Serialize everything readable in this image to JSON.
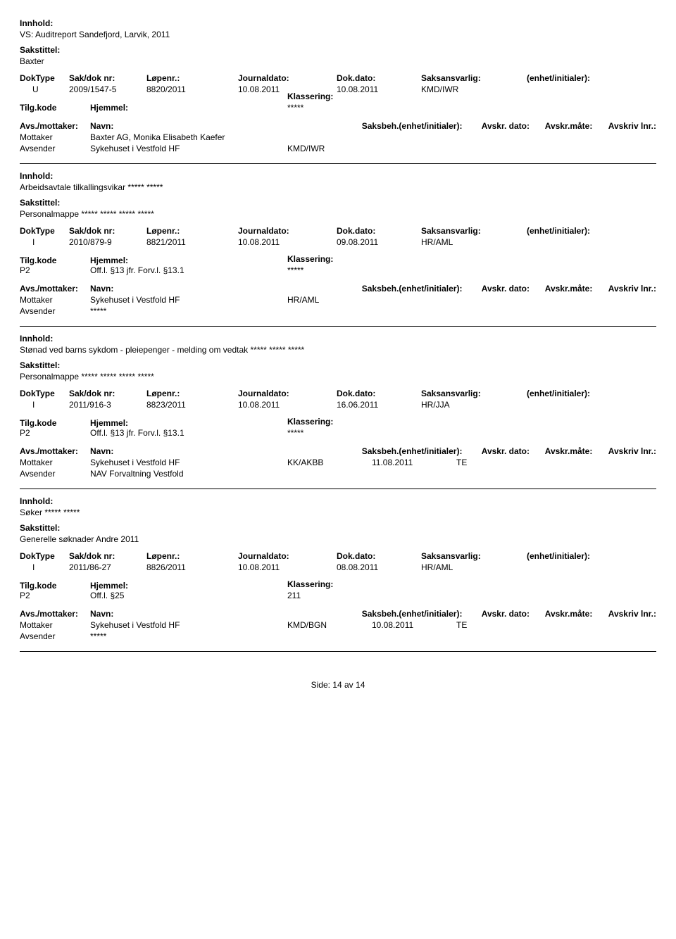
{
  "labels": {
    "innhold": "Innhold:",
    "sakstittel": "Sakstittel:",
    "doktype": "DokType",
    "sakdok": "Sak/dok nr:",
    "lnr": "Løpenr.:",
    "jdate": "Journaldato:",
    "ddate": "Dok.dato:",
    "saksansv": "Saksansvarlig:",
    "enhet": "(enhet/initialer):",
    "tilgkode": "Tilg.kode",
    "hjemmel": "Hjemmel:",
    "klassering": "Klassering:",
    "avsmottaker": "Avs./mottaker:",
    "navn": "Navn:",
    "saksbeh": "Saksbeh.(enhet/initialer):",
    "avskrdato": "Avskr. dato:",
    "avskrmate": "Avskr.måte:",
    "avskrivlnr": "Avskriv lnr.:",
    "mottaker": "Mottaker",
    "avsender": "Avsender",
    "side": "Side:",
    "av": "av"
  },
  "entries": [
    {
      "innhold": "VS: Auditreport Sandefjord, Larvik, 2011",
      "sakstittel": "Baxter",
      "doktype": "U",
      "sakdok": "2009/1547-5",
      "lnr": "8820/2011",
      "jdate": "10.08.2011",
      "ddate": "10.08.2011",
      "saksansv": "KMD/IWR",
      "tilgkode": "",
      "hjemmel": "",
      "klassering": "*****",
      "parties": [
        {
          "role": "Mottaker",
          "name": "Baxter AG, Monika Elisabeth Kaefer",
          "saksbeh": "",
          "avdate": "",
          "avmate": ""
        },
        {
          "role": "Avsender",
          "name": "Sykehuset i Vestfold HF",
          "saksbeh": "KMD/IWR",
          "avdate": "",
          "avmate": ""
        }
      ]
    },
    {
      "innhold": "Arbeidsavtale tilkallingsvikar ***** *****",
      "sakstittel": "Personalmappe ***** ***** ***** *****",
      "doktype": "I",
      "sakdok": "2010/879-9",
      "lnr": "8821/2011",
      "jdate": "10.08.2011",
      "ddate": "09.08.2011",
      "saksansv": "HR/AML",
      "tilgkode": "P2",
      "hjemmel": "Off.l. §13 jfr. Forv.l. §13.1",
      "klassering": "*****",
      "parties": [
        {
          "role": "Mottaker",
          "name": "Sykehuset i Vestfold HF",
          "saksbeh": "HR/AML",
          "avdate": "",
          "avmate": ""
        },
        {
          "role": "Avsender",
          "name": "*****",
          "saksbeh": "",
          "avdate": "",
          "avmate": ""
        }
      ]
    },
    {
      "innhold": "Stønad ved barns sykdom - pleiepenger - melding om vedtak ***** ***** *****",
      "sakstittel": "Personalmappe ***** ***** ***** *****",
      "doktype": "I",
      "sakdok": "2011/916-3",
      "lnr": "8823/2011",
      "jdate": "10.08.2011",
      "ddate": "16.06.2011",
      "saksansv": "HR/JJA",
      "tilgkode": "P2",
      "hjemmel": "Off.l. §13 jfr. Forv.l. §13.1",
      "klassering": "*****",
      "parties": [
        {
          "role": "Mottaker",
          "name": "Sykehuset i Vestfold HF",
          "saksbeh": "KK/AKBB",
          "avdate": "11.08.2011",
          "avmate": "TE"
        },
        {
          "role": "Avsender",
          "name": "NAV Forvaltning Vestfold",
          "saksbeh": "",
          "avdate": "",
          "avmate": ""
        }
      ]
    },
    {
      "innhold": "Søker ***** *****",
      "sakstittel": "Generelle søknader Andre 2011",
      "doktype": "I",
      "sakdok": "2011/86-27",
      "lnr": "8826/2011",
      "jdate": "10.08.2011",
      "ddate": "08.08.2011",
      "saksansv": "HR/AML",
      "tilgkode": "P2",
      "hjemmel": "Off.l. §25",
      "klassering": "211",
      "parties": [
        {
          "role": "Mottaker",
          "name": "Sykehuset i Vestfold HF",
          "saksbeh": "KMD/BGN",
          "avdate": "10.08.2011",
          "avmate": "TE"
        },
        {
          "role": "Avsender",
          "name": "*****",
          "saksbeh": "",
          "avdate": "",
          "avmate": ""
        }
      ]
    }
  ],
  "page": {
    "current": "14",
    "total": "14"
  }
}
